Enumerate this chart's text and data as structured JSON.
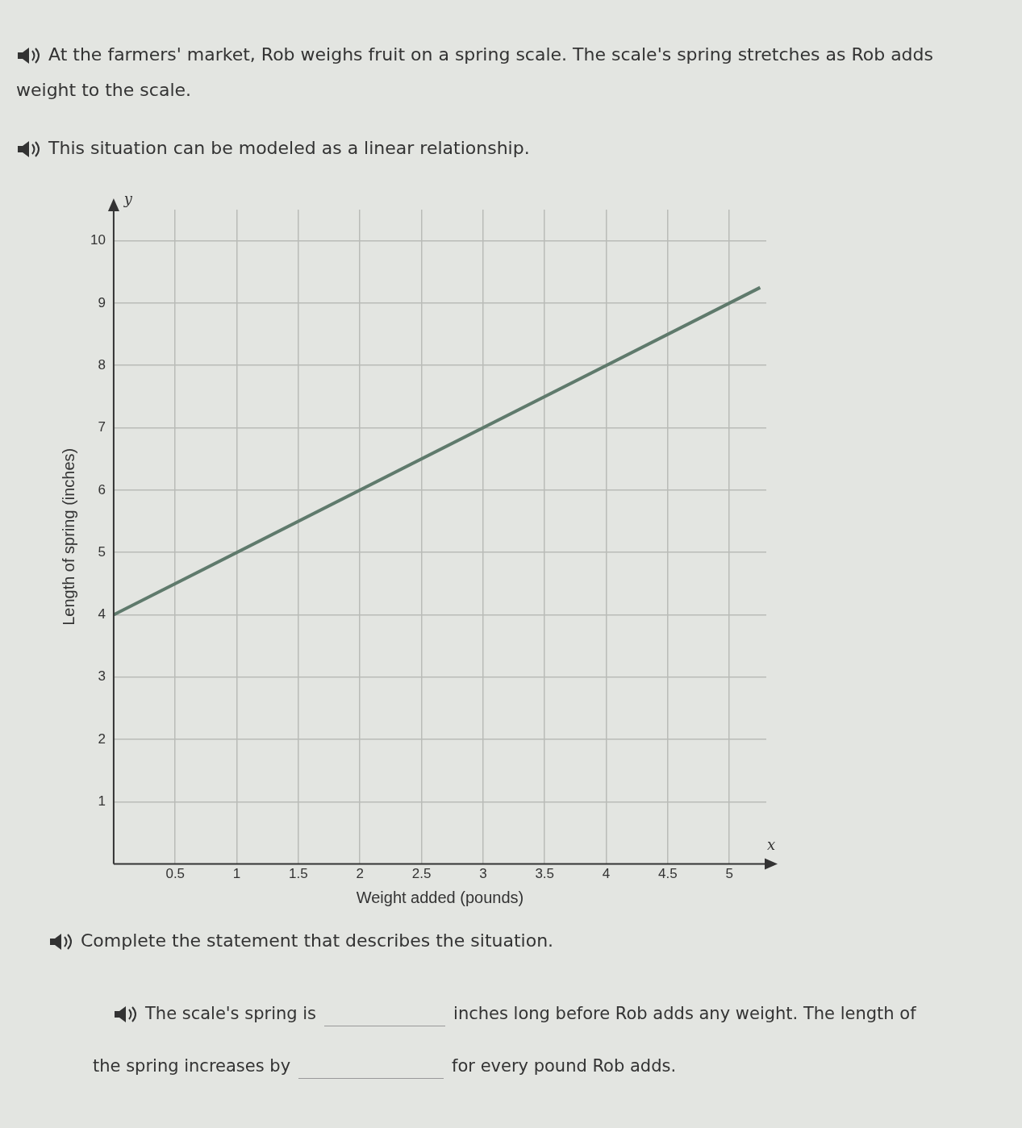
{
  "chart_data": {
    "type": "line",
    "title": "At the farmers' market, Rob weighs fruit on a spring scale. The scale's spring stretches as Rob adds weight to the scale.",
    "subtitle": "This situation can be modeled as a linear relationship.",
    "xlabel": "Weight added (pounds)",
    "ylabel": "Length of spring (inches)",
    "x": [
      0,
      5.25
    ],
    "series": [
      {
        "color": "#5f7a6c",
        "values": [
          4,
          9.25
        ]
      }
    ],
    "xlim": [
      0,
      5.3
    ],
    "ylim": [
      0,
      10.5
    ],
    "xticks": [
      0.5,
      1,
      1.5,
      2,
      2.5,
      3,
      3.5,
      4,
      4.5,
      5
    ],
    "yticks": [
      1,
      2,
      3,
      4,
      5,
      6,
      7,
      8,
      9,
      10
    ],
    "grid": true,
    "legend": false,
    "marker": "none",
    "line_style": "solid",
    "annotations": [
      "x",
      "y",
      "Complete the statement that describes the situation.",
      "The scale's spring is",
      "inches long before Rob adds any weight. The length of",
      "the spring increases by",
      "for every pound Rob adds."
    ]
  }
}
